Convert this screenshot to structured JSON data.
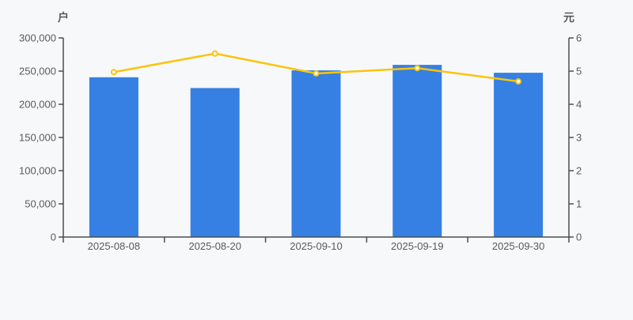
{
  "page": {
    "background": "#f7f8f9"
  },
  "chart_data": {
    "type": "bar",
    "description": "dual-axis chart: bars on left axis (households), line on right axis (yuan)",
    "categories": [
      "2025-08-08",
      "2025-08-20",
      "2025-09-10",
      "2025-09-19",
      "2025-09-30"
    ],
    "series": [
      {
        "id": "bar-series",
        "type": "bar",
        "y_axis": "left",
        "color": "#3580e2",
        "values": [
          240700,
          224500,
          251100,
          259400,
          247500
        ]
      },
      {
        "id": "line-series",
        "type": "line",
        "y_axis": "right",
        "color": "#fbc40d",
        "marker": "circle-white-fill",
        "values": [
          4.97,
          5.53,
          4.93,
          5.09,
          4.69
        ]
      }
    ],
    "left_axis": {
      "name": "户",
      "min": 0,
      "max": 300000,
      "tick_step": 50000,
      "ticks": [
        "0",
        "50,000",
        "100,000",
        "150,000",
        "200,000",
        "250,000",
        "300,000"
      ]
    },
    "right_axis": {
      "name": "元",
      "min": 0,
      "max": 6,
      "tick_step": 1,
      "ticks": [
        "0",
        "1",
        "2",
        "3",
        "4",
        "5",
        "6"
      ]
    },
    "grid_lines": false,
    "legend": false,
    "style": {
      "axis_color": "#4e4e4e",
      "text_color": "#5a5a5a",
      "tick_label_font_size": 13,
      "axis_name_font_size": 14
    }
  }
}
